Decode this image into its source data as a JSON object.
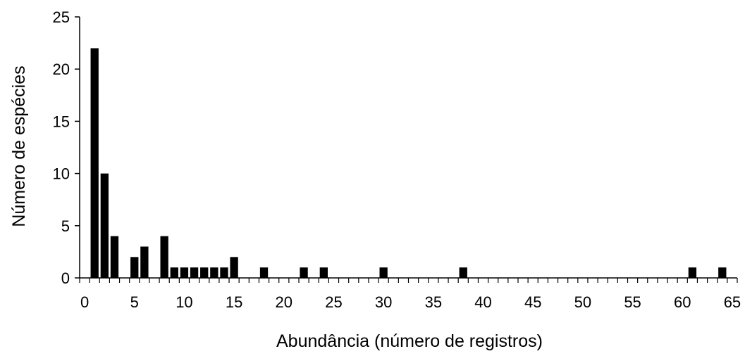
{
  "chart_data": {
    "type": "bar",
    "title": "",
    "xlabel": "Abundância (número de registros)",
    "ylabel": "Número de espécies",
    "xlim": [
      0,
      65
    ],
    "ylim": [
      0,
      25
    ],
    "xticks": [
      0,
      5,
      10,
      15,
      20,
      25,
      30,
      35,
      40,
      45,
      50,
      55,
      60,
      65
    ],
    "yticks": [
      0,
      5,
      10,
      15,
      20,
      25
    ],
    "grid": false,
    "legend": "none",
    "bar_color": "#000000",
    "x": [
      1,
      2,
      3,
      5,
      6,
      8,
      9,
      10,
      11,
      12,
      13,
      14,
      15,
      18,
      22,
      24,
      30,
      38,
      61,
      64
    ],
    "values": [
      22,
      10,
      4,
      2,
      3,
      4,
      1,
      1,
      1,
      1,
      1,
      1,
      2,
      1,
      1,
      1,
      1,
      1,
      1,
      1
    ]
  }
}
